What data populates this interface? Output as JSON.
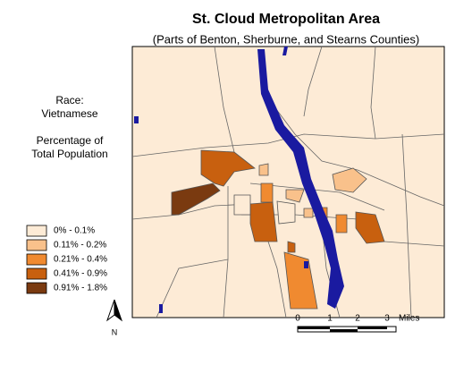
{
  "header": {
    "title": "St. Cloud Metropolitan Area",
    "subtitle": "(Parts of Benton, Sherburne, and Stearns Counties)"
  },
  "sidebar": {
    "race_lines": [
      "Race:",
      "Vietnamese"
    ],
    "measure_lines": [
      "Percentage of",
      "Total Population"
    ]
  },
  "legend": {
    "items": [
      {
        "label": "0% - 0.1%",
        "color": "#fdebd6"
      },
      {
        "label": "0.11% - 0.2%",
        "color": "#f9c18b"
      },
      {
        "label": "0.21% - 0.4%",
        "color": "#f08a30"
      },
      {
        "label": "0.41% - 0.9%",
        "color": "#c8600f"
      },
      {
        "label": "0.91% - 1.8%",
        "color": "#7a3a10"
      }
    ]
  },
  "scale_bar": {
    "labels": [
      "0",
      "1",
      "2",
      "3"
    ],
    "unit": "Miles"
  },
  "north_arrow": {
    "label": "N"
  }
}
